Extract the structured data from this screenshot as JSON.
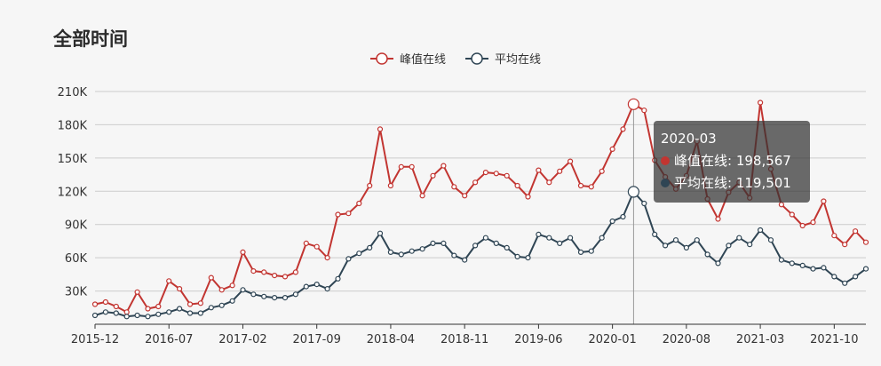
{
  "title": "全部时间",
  "colors": {
    "peak": "#c23531",
    "avg": "#2f4554",
    "grid": "#cccccc",
    "axis": "#333333"
  },
  "chart_data": {
    "type": "line",
    "title": "全部时间",
    "x": [
      "2015-12",
      "2016-01",
      "2016-02",
      "2016-03",
      "2016-04",
      "2016-05",
      "2016-06",
      "2016-07",
      "2016-08",
      "2016-09",
      "2016-10",
      "2016-11",
      "2016-12",
      "2017-01",
      "2017-02",
      "2017-03",
      "2017-04",
      "2017-05",
      "2017-06",
      "2017-07",
      "2017-08",
      "2017-09",
      "2017-10",
      "2017-11",
      "2017-12",
      "2018-01",
      "2018-02",
      "2018-03",
      "2018-04",
      "2018-05",
      "2018-06",
      "2018-07",
      "2018-08",
      "2018-09",
      "2018-10",
      "2018-11",
      "2018-12",
      "2019-01",
      "2019-02",
      "2019-03",
      "2019-04",
      "2019-05",
      "2019-06",
      "2019-07",
      "2019-08",
      "2019-09",
      "2019-10",
      "2019-11",
      "2019-12",
      "2020-01",
      "2020-02",
      "2020-03",
      "2020-04",
      "2020-05",
      "2020-06",
      "2020-07",
      "2020-08",
      "2020-09",
      "2020-10",
      "2020-11",
      "2020-12",
      "2021-01",
      "2021-02",
      "2021-03",
      "2021-04",
      "2021-05",
      "2021-06",
      "2021-07",
      "2021-08",
      "2021-09",
      "2021-10",
      "2021-11",
      "2021-12",
      "2022-01"
    ],
    "x_tick_labels": [
      "2015-12",
      "2016-07",
      "2017-02",
      "2017-09",
      "2018-04",
      "2018-11",
      "2019-06",
      "2020-01",
      "2020-08",
      "2021-03",
      "2021-10"
    ],
    "y_tick_labels": [
      "30K",
      "60K",
      "90K",
      "120K",
      "150K",
      "180K",
      "210K"
    ],
    "ylim": [
      0,
      210000
    ],
    "grid": true,
    "legend_position": "top-center",
    "series": [
      {
        "name": "峰值在线",
        "values": [
          18000,
          20000,
          16000,
          11000,
          29000,
          14000,
          16000,
          39000,
          32000,
          18000,
          19000,
          42000,
          31000,
          35000,
          65000,
          48000,
          47000,
          44000,
          43000,
          47000,
          73000,
          70000,
          60000,
          99000,
          100000,
          109000,
          125000,
          176000,
          125000,
          142000,
          142000,
          116000,
          134000,
          143000,
          124000,
          116000,
          128000,
          137000,
          136000,
          134000,
          125000,
          115000,
          139000,
          128000,
          138000,
          147000,
          125000,
          124000,
          138000,
          158000,
          176000,
          198567,
          193000,
          148000,
          133000,
          122000,
          134000,
          165000,
          113000,
          95000,
          119000,
          128000,
          114000,
          200000,
          140000,
          108000,
          99000,
          89000,
          92000,
          111000,
          80000,
          72000,
          84000,
          74000
        ]
      },
      {
        "name": "平均在线",
        "values": [
          8000,
          11000,
          10000,
          7000,
          8000,
          7000,
          9000,
          11000,
          14000,
          10000,
          10000,
          15000,
          17000,
          21000,
          31000,
          27000,
          25000,
          24000,
          24000,
          27000,
          34000,
          36000,
          32000,
          41000,
          59000,
          64000,
          69000,
          82000,
          65000,
          63000,
          66000,
          68000,
          73000,
          73000,
          62000,
          58000,
          71000,
          78000,
          73000,
          69000,
          61000,
          60000,
          81000,
          78000,
          73000,
          78000,
          65000,
          66000,
          78000,
          93000,
          97000,
          119501,
          109000,
          81000,
          71000,
          76000,
          69000,
          76000,
          63000,
          55000,
          71000,
          78000,
          72000,
          85000,
          76000,
          58000,
          55000,
          53000,
          50000,
          51000,
          43000,
          37000,
          43000,
          50000
        ]
      }
    ]
  },
  "tooltip": {
    "date": "2020-03",
    "peak_label": "峰值在线: 198,567",
    "avg_label": "平均在线: 119,501"
  }
}
